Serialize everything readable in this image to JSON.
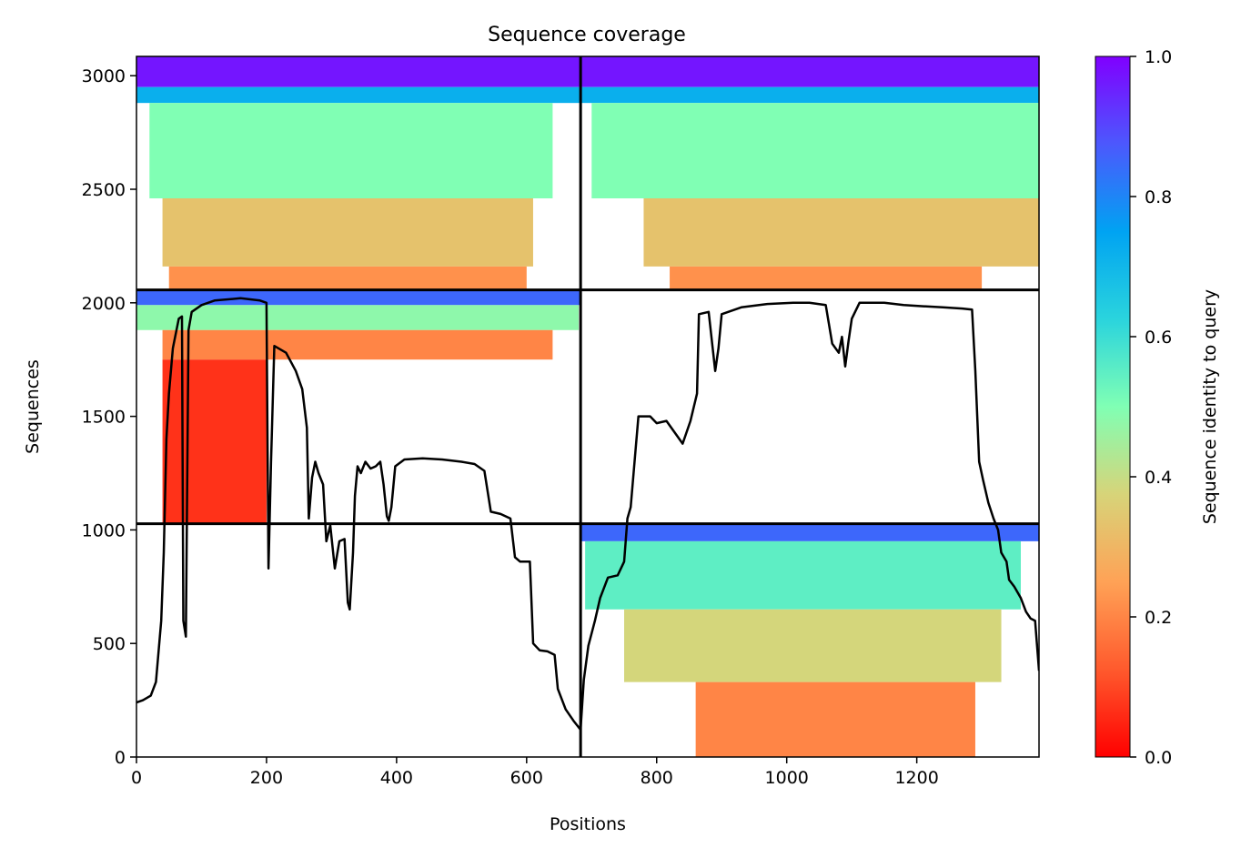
{
  "chart_data": {
    "type": "heatmap",
    "title": "Sequence coverage",
    "xlabel": "Positions",
    "ylabel": "Sequences",
    "xlim": [
      0,
      1388
    ],
    "ylim": [
      0,
      3085
    ],
    "x_ticks": [
      0,
      200,
      400,
      600,
      800,
      1000,
      1200
    ],
    "y_ticks": [
      0,
      500,
      1000,
      1500,
      2000,
      2500,
      3000
    ],
    "grid": false,
    "colorbar": {
      "label": "Sequence identity to query",
      "range": [
        0,
        1
      ],
      "ticks": [
        0.0,
        0.2,
        0.4,
        0.6,
        0.8,
        1.0
      ],
      "tick_labels": [
        "0.0",
        "0.2",
        "0.4",
        "0.6",
        "0.8",
        "1.0"
      ],
      "colormap": "rainbow_r"
    },
    "chain_boundaries": {
      "x": [
        683
      ],
      "y": [
        1027,
        2057
      ]
    },
    "coverage_blocks": [
      {
        "sequences": [
          2057,
          3085
        ],
        "positions": [
          0,
          683
        ],
        "bands": [
          {
            "seq": [
              2950,
              3085
            ],
            "pos": [
              0,
              683
            ],
            "identity": 0.97
          },
          {
            "seq": [
              2880,
              2950
            ],
            "pos": [
              0,
              683
            ],
            "identity": 0.72
          },
          {
            "seq": [
              2460,
              2880
            ],
            "pos": [
              20,
              640
            ],
            "identity": 0.5
          },
          {
            "seq": [
              2160,
              2460
            ],
            "pos": [
              40,
              610
            ],
            "identity": 0.33
          },
          {
            "seq": [
              2057,
              2160
            ],
            "pos": [
              50,
              600
            ],
            "identity": 0.22
          }
        ]
      },
      {
        "sequences": [
          2057,
          3085
        ],
        "positions": [
          683,
          1388
        ],
        "bands": [
          {
            "seq": [
              2950,
              3085
            ],
            "pos": [
              683,
              1388
            ],
            "identity": 0.97
          },
          {
            "seq": [
              2880,
              2950
            ],
            "pos": [
              683,
              1388
            ],
            "identity": 0.72
          },
          {
            "seq": [
              2460,
              2880
            ],
            "pos": [
              700,
              1388
            ],
            "identity": 0.5
          },
          {
            "seq": [
              2160,
              2460
            ],
            "pos": [
              780,
              1388
            ],
            "identity": 0.33
          },
          {
            "seq": [
              2057,
              2160
            ],
            "pos": [
              820,
              1300
            ],
            "identity": 0.22
          }
        ]
      },
      {
        "sequences": [
          1027,
          2057
        ],
        "positions": [
          0,
          683
        ],
        "bands": [
          {
            "seq": [
              1990,
              2057
            ],
            "pos": [
              0,
              683
            ],
            "identity": 0.85
          },
          {
            "seq": [
              1880,
              1990
            ],
            "pos": [
              0,
              680
            ],
            "identity": 0.48
          },
          {
            "seq": [
              1750,
              1880
            ],
            "pos": [
              40,
              640
            ],
            "identity": 0.2
          },
          {
            "seq": [
              1027,
              1750
            ],
            "pos": [
              40,
              200
            ],
            "identity": 0.07
          }
        ]
      },
      {
        "sequences": [
          0,
          1027
        ],
        "positions": [
          683,
          1388
        ],
        "bands": [
          {
            "seq": [
              950,
              1027
            ],
            "pos": [
              683,
              1388
            ],
            "identity": 0.85
          },
          {
            "seq": [
              650,
              950
            ],
            "pos": [
              690,
              1360
            ],
            "identity": 0.55
          },
          {
            "seq": [
              330,
              650
            ],
            "pos": [
              750,
              1330
            ],
            "identity": 0.38
          },
          {
            "seq": [
              0,
              330
            ],
            "pos": [
              860,
              1290
            ],
            "identity": 0.2
          }
        ]
      }
    ],
    "coverage_line": [
      [
        0,
        240
      ],
      [
        10,
        250
      ],
      [
        22,
        270
      ],
      [
        30,
        330
      ],
      [
        38,
        600
      ],
      [
        42,
        900
      ],
      [
        46,
        1400
      ],
      [
        50,
        1600
      ],
      [
        56,
        1800
      ],
      [
        65,
        1930
      ],
      [
        70,
        1940
      ],
      [
        72,
        600
      ],
      [
        76,
        530
      ],
      [
        80,
        1880
      ],
      [
        85,
        1960
      ],
      [
        100,
        1990
      ],
      [
        120,
        2010
      ],
      [
        160,
        2020
      ],
      [
        190,
        2010
      ],
      [
        200,
        2000
      ],
      [
        203,
        830
      ],
      [
        207,
        1300
      ],
      [
        212,
        1810
      ],
      [
        230,
        1780
      ],
      [
        245,
        1700
      ],
      [
        255,
        1620
      ],
      [
        262,
        1450
      ],
      [
        265,
        1050
      ],
      [
        270,
        1230
      ],
      [
        275,
        1300
      ],
      [
        280,
        1250
      ],
      [
        287,
        1200
      ],
      [
        292,
        950
      ],
      [
        298,
        1020
      ],
      [
        305,
        830
      ],
      [
        312,
        950
      ],
      [
        320,
        960
      ],
      [
        325,
        680
      ],
      [
        328,
        650
      ],
      [
        333,
        900
      ],
      [
        336,
        1150
      ],
      [
        340,
        1280
      ],
      [
        345,
        1250
      ],
      [
        352,
        1300
      ],
      [
        360,
        1270
      ],
      [
        368,
        1280
      ],
      [
        375,
        1300
      ],
      [
        380,
        1200
      ],
      [
        385,
        1060
      ],
      [
        388,
        1040
      ],
      [
        392,
        1100
      ],
      [
        398,
        1280
      ],
      [
        412,
        1310
      ],
      [
        440,
        1315
      ],
      [
        470,
        1310
      ],
      [
        500,
        1300
      ],
      [
        520,
        1290
      ],
      [
        535,
        1260
      ],
      [
        545,
        1080
      ],
      [
        560,
        1070
      ],
      [
        575,
        1050
      ],
      [
        582,
        880
      ],
      [
        590,
        860
      ],
      [
        605,
        860
      ],
      [
        610,
        500
      ],
      [
        620,
        470
      ],
      [
        632,
        465
      ],
      [
        643,
        450
      ],
      [
        648,
        300
      ],
      [
        660,
        210
      ],
      [
        672,
        160
      ],
      [
        683,
        120
      ],
      [
        688,
        340
      ],
      [
        695,
        490
      ],
      [
        705,
        600
      ],
      [
        713,
        700
      ],
      [
        725,
        790
      ],
      [
        740,
        800
      ],
      [
        750,
        860
      ],
      [
        755,
        1050
      ],
      [
        760,
        1100
      ],
      [
        772,
        1500
      ],
      [
        790,
        1500
      ],
      [
        800,
        1470
      ],
      [
        815,
        1480
      ],
      [
        830,
        1420
      ],
      [
        840,
        1380
      ],
      [
        852,
        1480
      ],
      [
        862,
        1600
      ],
      [
        865,
        1950
      ],
      [
        880,
        1960
      ],
      [
        890,
        1700
      ],
      [
        895,
        1800
      ],
      [
        900,
        1950
      ],
      [
        930,
        1980
      ],
      [
        970,
        1995
      ],
      [
        1010,
        2000
      ],
      [
        1035,
        2000
      ],
      [
        1060,
        1990
      ],
      [
        1070,
        1820
      ],
      [
        1080,
        1780
      ],
      [
        1085,
        1850
      ],
      [
        1090,
        1720
      ],
      [
        1095,
        1830
      ],
      [
        1100,
        1930
      ],
      [
        1112,
        2000
      ],
      [
        1150,
        2000
      ],
      [
        1180,
        1990
      ],
      [
        1210,
        1985
      ],
      [
        1240,
        1980
      ],
      [
        1270,
        1975
      ],
      [
        1285,
        1970
      ],
      [
        1290,
        1700
      ],
      [
        1296,
        1300
      ],
      [
        1302,
        1220
      ],
      [
        1310,
        1120
      ],
      [
        1318,
        1050
      ],
      [
        1325,
        1000
      ],
      [
        1330,
        900
      ],
      [
        1338,
        860
      ],
      [
        1342,
        780
      ],
      [
        1350,
        750
      ],
      [
        1360,
        700
      ],
      [
        1368,
        640
      ],
      [
        1375,
        610
      ],
      [
        1382,
        600
      ],
      [
        1388,
        380
      ]
    ]
  }
}
